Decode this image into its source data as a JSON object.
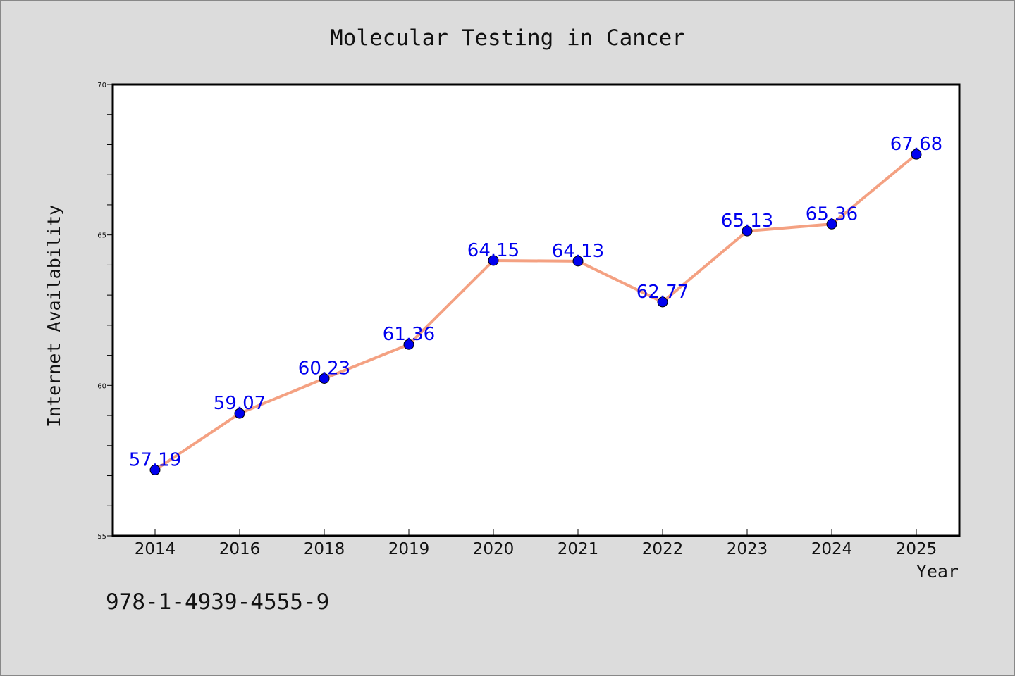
{
  "colors": {
    "background": "#dcdcdc",
    "plot_background": "#ffffff",
    "line": "#f4a182",
    "marker": "#0000ee",
    "label": "#0000ee"
  },
  "footer_text": "978-1-4939-4555-9",
  "chart_data": {
    "type": "line",
    "title": "Molecular Testing in Cancer",
    "xlabel": "Year",
    "ylabel": "Internet Availability",
    "categories": [
      "2014",
      "2016",
      "2018",
      "2019",
      "2020",
      "2021",
      "2022",
      "2023",
      "2024",
      "2025"
    ],
    "series": [
      {
        "values": [
          57.19,
          59.07,
          60.23,
          61.36,
          64.15,
          64.13,
          62.77,
          65.13,
          65.36,
          67.68
        ],
        "labels": [
          "57.19",
          "59.07",
          "60.23",
          "61.36",
          "64.15",
          "64.13",
          "62.77",
          "65.13",
          "65.36",
          "67.68"
        ]
      }
    ],
    "ylim": [
      55,
      70
    ],
    "yticks_major": [
      "55",
      "60",
      "65",
      "70"
    ],
    "y_minor_step": 1,
    "grid": false,
    "legend": "none"
  }
}
